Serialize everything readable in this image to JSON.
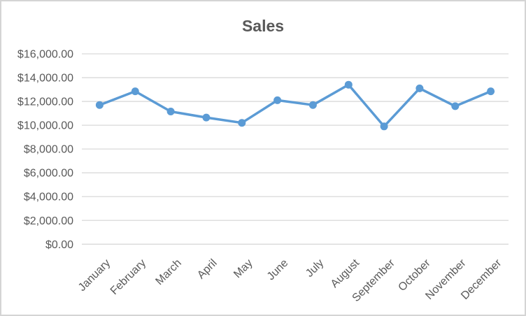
{
  "chart": {
    "title": "Sales"
  },
  "chart_data": {
    "type": "line",
    "title": "Sales",
    "categories": [
      "January",
      "February",
      "March",
      "April",
      "May",
      "June",
      "July",
      "August",
      "September",
      "October",
      "November",
      "December"
    ],
    "series": [
      {
        "name": "Sales",
        "values": [
          11700,
          12850,
          11150,
          10650,
          10200,
          12100,
          11700,
          13400,
          9900,
          13100,
          11600,
          12850
        ]
      }
    ],
    "xlabel": "",
    "ylabel": "",
    "ylim": [
      0,
      16000
    ],
    "y_tick_step": 2000,
    "y_tick_labels": [
      "$0.00",
      "$2,000.00",
      "$4,000.00",
      "$6,000.00",
      "$8,000.00",
      "$10,000.00",
      "$12,000.00",
      "$14,000.00",
      "$16,000.00"
    ],
    "x_label_rotation": -45,
    "grid": "horizontal",
    "legend_position": "none",
    "line_color": "#5B9BD5",
    "marker": "circle",
    "title_color": "#595959",
    "label_color": "#595959",
    "gridline_color": "#D9D9D9",
    "background_color": "#FFFFFF",
    "border_color": "#D4D4D4"
  }
}
